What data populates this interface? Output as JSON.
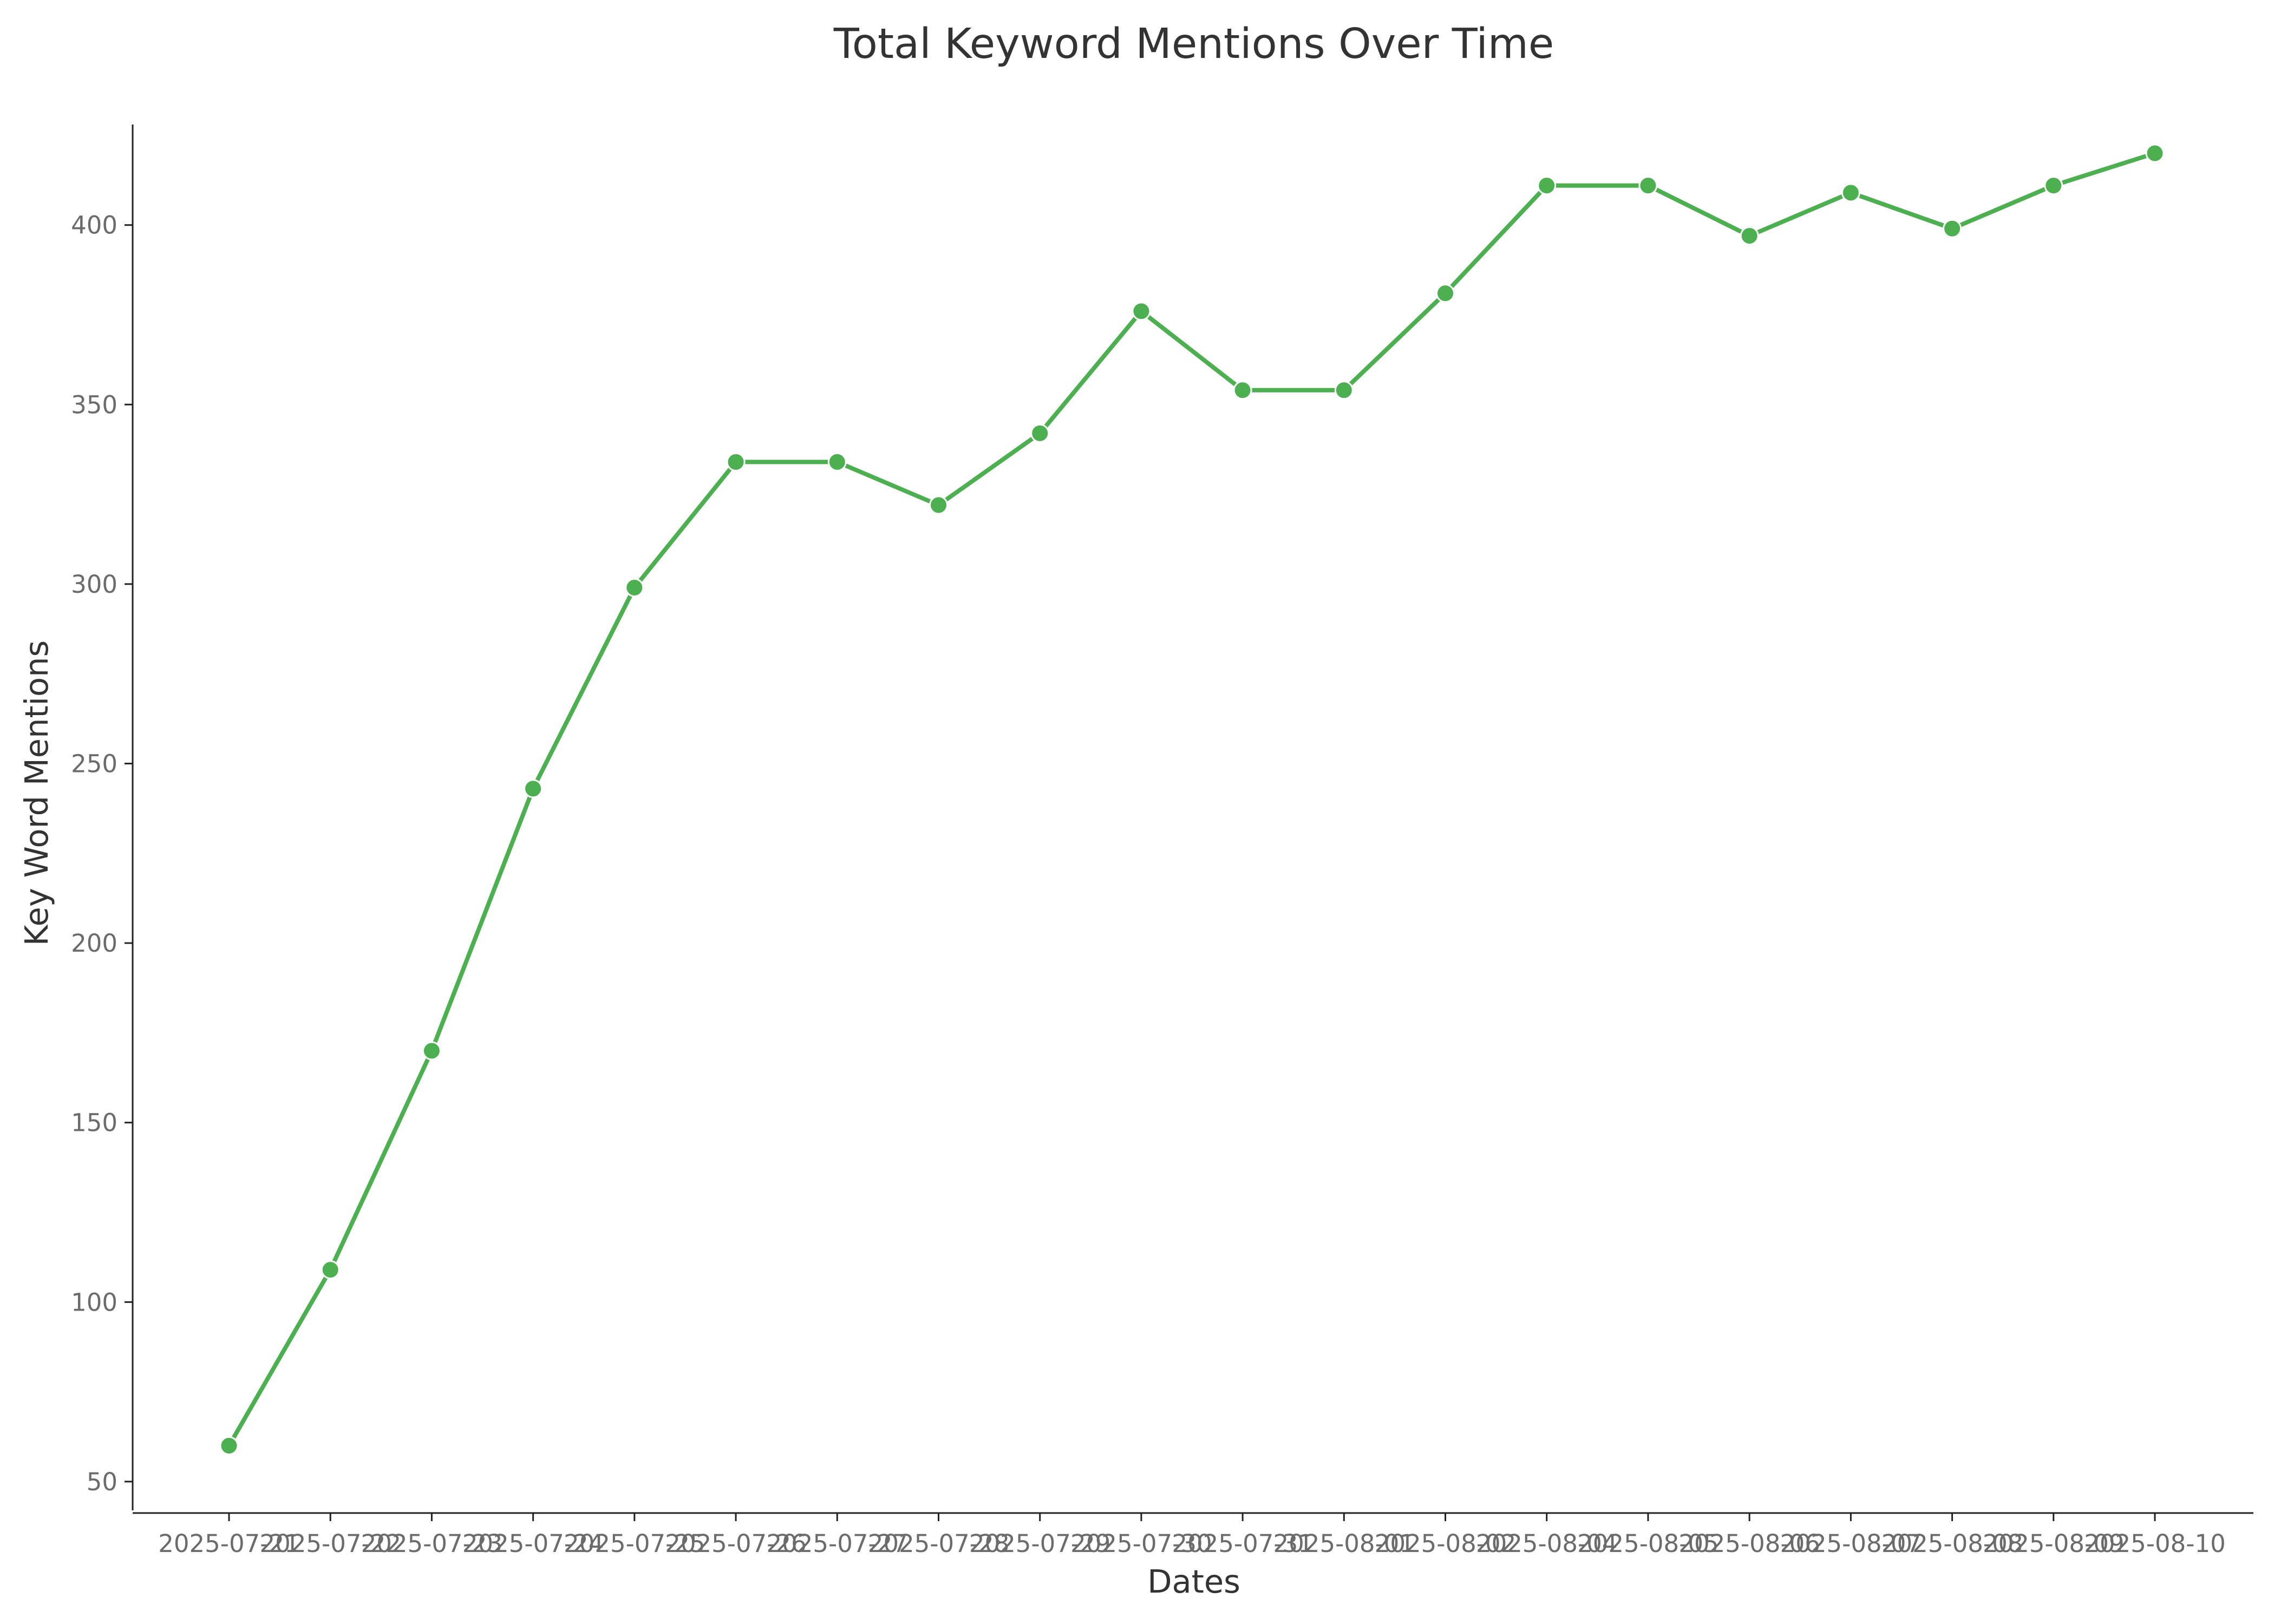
{
  "chart_data": {
    "type": "line",
    "title": "Total Keyword Mentions Over Time",
    "xlabel": "Dates",
    "ylabel": "Key Word Mentions",
    "x": [
      "2025-07-21",
      "2025-07-22",
      "2025-07-23",
      "2025-07-24",
      "2025-07-25",
      "2025-07-26",
      "2025-07-27",
      "2025-07-28",
      "2025-07-29",
      "2025-07-30",
      "2025-07-31",
      "2025-08-01",
      "2025-08-02",
      "2025-08-04",
      "2025-08-05",
      "2025-08-06",
      "2025-08-07",
      "2025-08-08",
      "2025-08-09",
      "2025-08-10"
    ],
    "series": [
      {
        "values": [
          60,
          109,
          170,
          243,
          299,
          334,
          334,
          322,
          342,
          376,
          354,
          354,
          381,
          411,
          411,
          397,
          409,
          399,
          411,
          420
        ]
      }
    ],
    "yticks": [
      50,
      100,
      150,
      200,
      250,
      300,
      350,
      400
    ],
    "ylim": [
      42,
      428
    ],
    "grid": false,
    "colors": {
      "line": "#4caf50"
    }
  }
}
